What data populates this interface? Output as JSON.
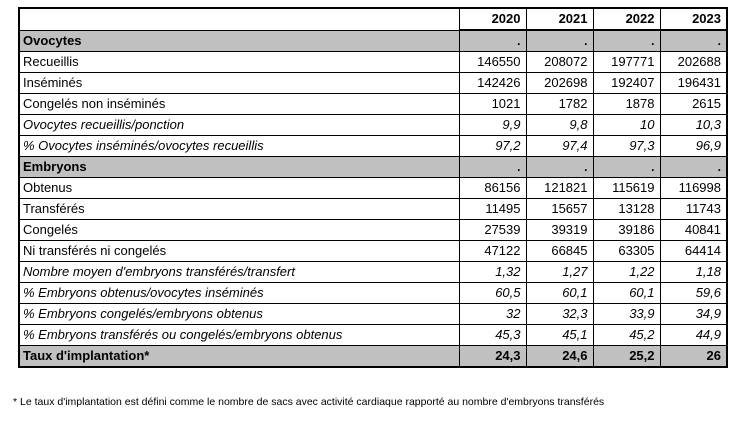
{
  "colors": {
    "section_bg": "#c0c0c0",
    "border": "#000000",
    "text": "#000000",
    "background": "#ffffff"
  },
  "table": {
    "year_headers": [
      "2020",
      "2021",
      "2022",
      "2023"
    ],
    "rows": [
      {
        "label": "Ovocytes",
        "style": "section",
        "values": [
          ".",
          ".",
          ".",
          "."
        ]
      },
      {
        "label": "Recueillis",
        "style": "normal",
        "values": [
          "146550",
          "208072",
          "197771",
          "202688"
        ]
      },
      {
        "label": "Inséminés",
        "style": "normal",
        "values": [
          "142426",
          "202698",
          "192407",
          "196431"
        ]
      },
      {
        "label": "Congelés non inséminés",
        "style": "normal",
        "values": [
          "1021",
          "1782",
          "1878",
          "2615"
        ]
      },
      {
        "label": "Ovocytes recueillis/ponction",
        "style": "italic",
        "values": [
          "9,9",
          "9,8",
          "10",
          "10,3"
        ]
      },
      {
        "label": "% Ovocytes inséminés/ovocytes recueillis",
        "style": "italic",
        "values": [
          "97,2",
          "97,4",
          "97,3",
          "96,9"
        ]
      },
      {
        "label": "Embryons",
        "style": "section",
        "values": [
          ".",
          ".",
          ".",
          "."
        ]
      },
      {
        "label": "Obtenus",
        "style": "normal",
        "values": [
          "86156",
          "121821",
          "115619",
          "116998"
        ]
      },
      {
        "label": "Transférés",
        "style": "normal",
        "values": [
          "11495",
          "15657",
          "13128",
          "11743"
        ]
      },
      {
        "label": "Congelés",
        "style": "normal",
        "values": [
          "27539",
          "39319",
          "39186",
          "40841"
        ]
      },
      {
        "label": "Ni transférés ni congelés",
        "style": "normal",
        "values": [
          "47122",
          "66845",
          "63305",
          "64414"
        ]
      },
      {
        "label": "Nombre moyen d'embryons transférés/transfert",
        "style": "italic",
        "values": [
          "1,32",
          "1,27",
          "1,22",
          "1,18"
        ]
      },
      {
        "label": "% Embryons obtenus/ovocytes inséminés",
        "style": "italic",
        "values": [
          "60,5",
          "60,1",
          "60,1",
          "59,6"
        ]
      },
      {
        "label": "% Embryons congelés/embryons obtenus",
        "style": "italic",
        "values": [
          "32",
          "32,3",
          "33,9",
          "34,9"
        ]
      },
      {
        "label": "% Embryons transférés ou congelés/embryons obtenus",
        "style": "italic",
        "values": [
          "45,3",
          "45,1",
          "45,2",
          "44,9"
        ]
      },
      {
        "label": "Taux d'implantation*",
        "style": "total",
        "values": [
          "24,3",
          "24,6",
          "25,2",
          "26"
        ]
      }
    ]
  },
  "footnote": "* Le taux d'implantation est défini comme le nombre de sacs avec activité cardiaque rapporté au nombre d'embryons transférés"
}
